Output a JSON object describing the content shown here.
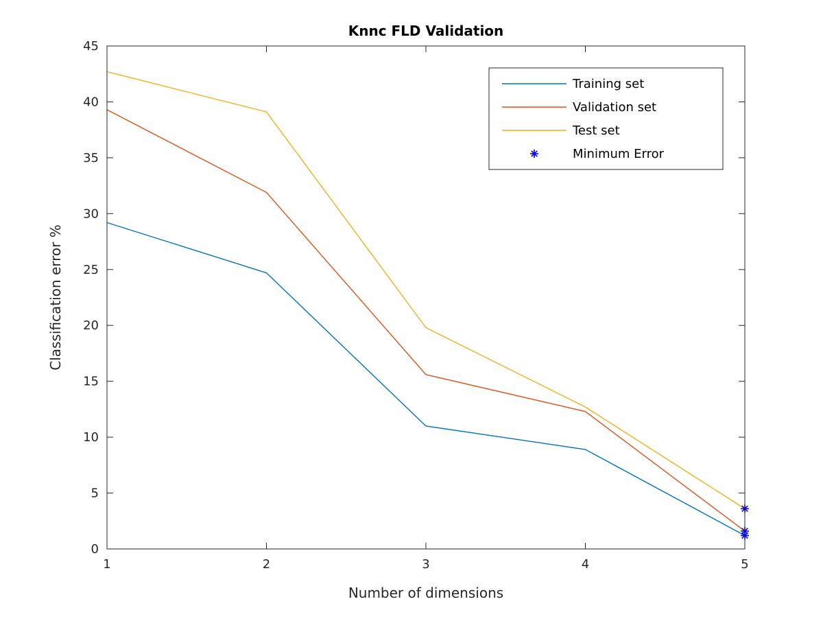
{
  "chart_data": {
    "type": "line",
    "title": "Knnc FLD Validation",
    "xlabel": "Number of dimensions",
    "ylabel": "Classification error %",
    "x": [
      1,
      2,
      3,
      4,
      5
    ],
    "xlim": [
      1,
      5
    ],
    "ylim": [
      0,
      45
    ],
    "xticks": [
      1,
      2,
      3,
      4,
      5
    ],
    "yticks": [
      0,
      5,
      10,
      15,
      20,
      25,
      30,
      35,
      40,
      45
    ],
    "grid": false,
    "legend_position": "top-right",
    "series": [
      {
        "name": "Training set",
        "values": [
          29.2,
          24.7,
          11.0,
          8.9,
          1.2
        ],
        "color": "#0072BD"
      },
      {
        "name": "Validation set",
        "values": [
          39.3,
          31.9,
          15.6,
          12.3,
          1.6
        ],
        "color": "#D95319"
      },
      {
        "name": "Test set",
        "values": [
          42.7,
          39.1,
          19.8,
          12.7,
          3.6
        ],
        "color": "#EDB120"
      }
    ],
    "minimum_error": {
      "name": "Minimum Error",
      "marker": "asterisk",
      "color": "#0000FF",
      "points": [
        {
          "x": 5,
          "y": 1.2
        },
        {
          "x": 5,
          "y": 1.6
        },
        {
          "x": 5,
          "y": 3.6
        }
      ]
    }
  }
}
